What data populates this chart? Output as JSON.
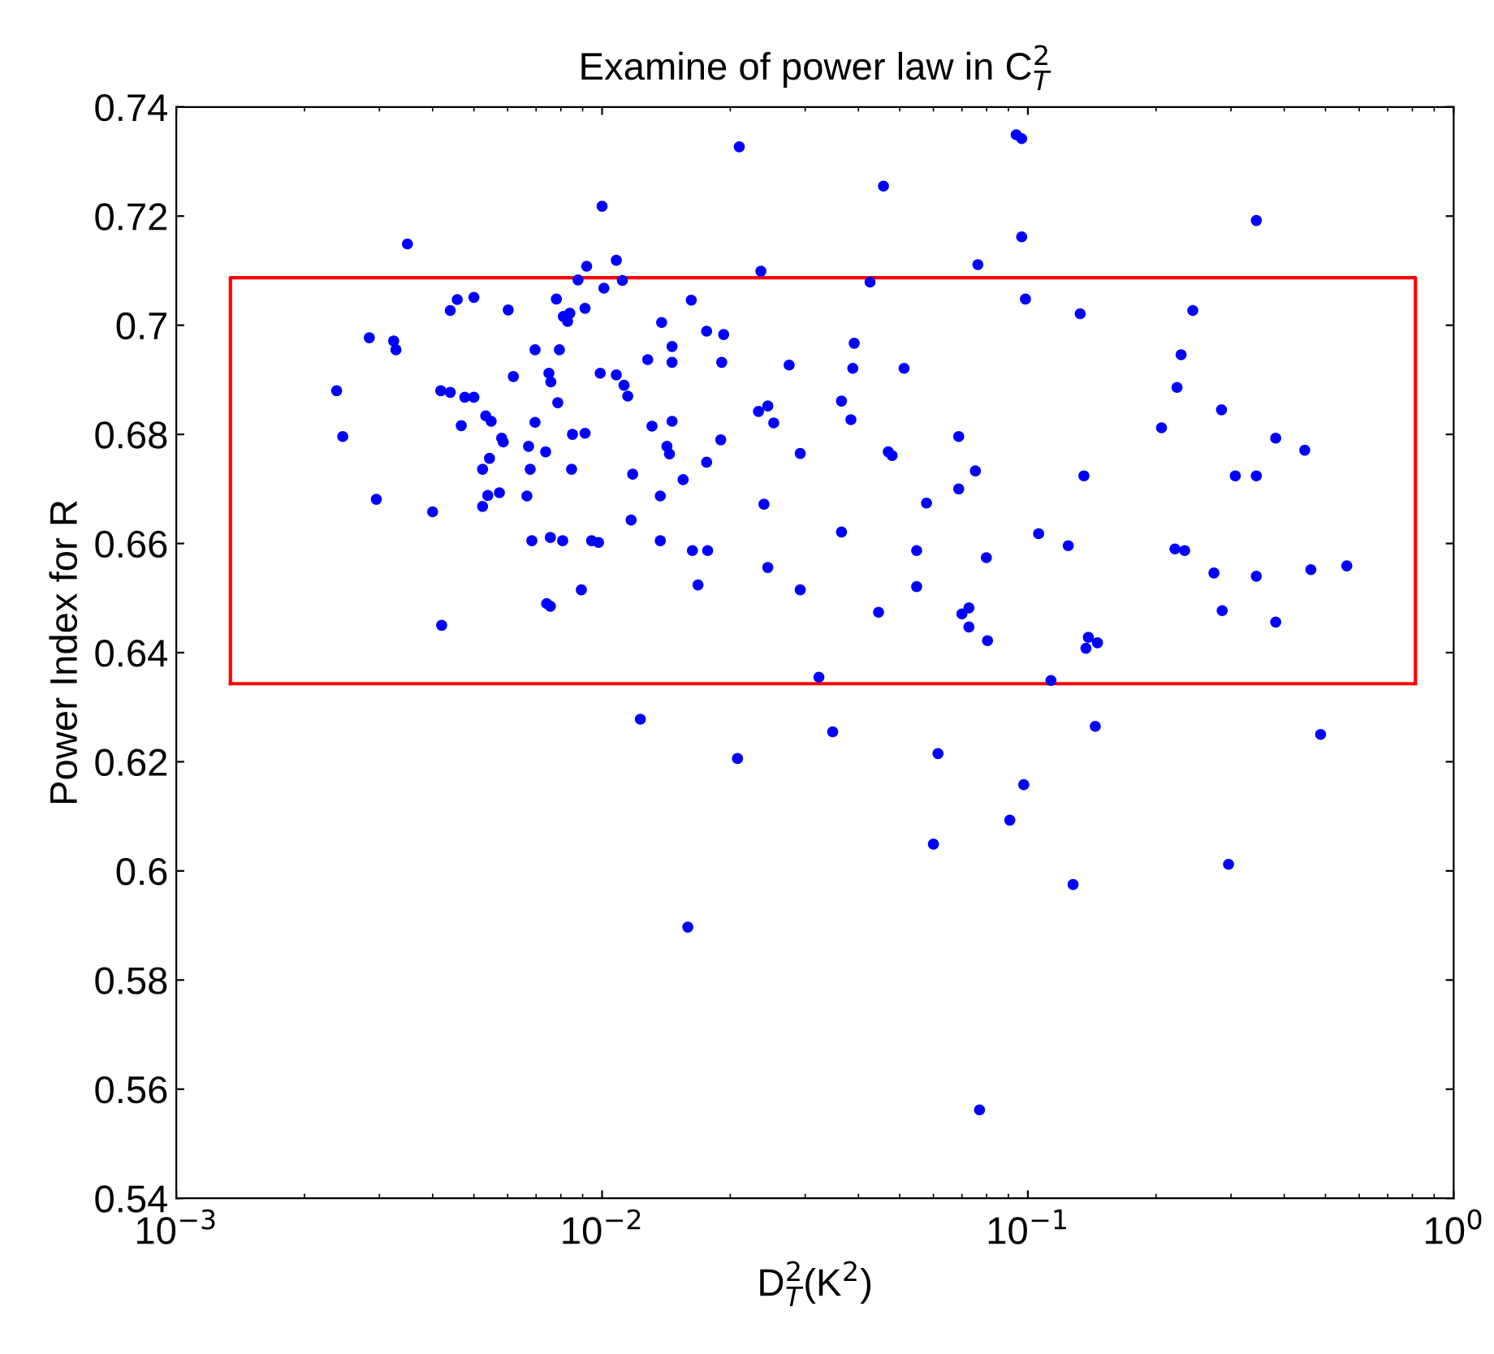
{
  "chart_data": {
    "type": "scatter",
    "title": "Examine of power law in C$^{2}$$_{T}$",
    "xlabel": "D$^{2}$$_{T}$(K$^{2}$)",
    "ylabel": "Power Index for R",
    "log": "x",
    "grid": false,
    "marker": "circle",
    "xlim": [
      0.001,
      1
    ],
    "ylim": [
      0.54,
      0.74
    ],
    "xticks": [
      {
        "value": 0.001,
        "label": "10$^{−3}$"
      },
      {
        "value": 0.01,
        "label": "10$^{−2}$"
      },
      {
        "value": 0.1,
        "label": "10$^{−1}$"
      },
      {
        "value": 1,
        "label": "10$^{0}$"
      }
    ],
    "yticks": [
      0.54,
      0.56,
      0.58,
      0.6,
      0.62,
      0.64,
      0.66,
      0.68,
      0.7,
      0.72,
      0.74
    ],
    "series": [
      {
        "color": "#0000ff",
        "x": [
          0.01,
          0.00349,
          0.0108,
          0.0092,
          0.00878,
          0.0101,
          0.00457,
          0.005,
          0.0044,
          0.00602,
          0.00781,
          0.0084,
          0.00811,
          0.0083,
          0.00912,
          0.00284,
          0.00324,
          0.00328,
          0.00696,
          0.00794,
          0.00238,
          0.00418,
          0.0044,
          0.00619,
          0.0075,
          0.00758,
          0.0099,
          0.0108,
          0.00476,
          0.005,
          0.00787,
          0.00246,
          0.00467,
          0.00533,
          0.00549,
          0.00696,
          0.00581,
          0.00586,
          0.00852,
          0.00912,
          0.00672,
          0.00737,
          0.00544,
          0.00524,
          0.00678,
          0.00848,
          0.00295,
          0.00539,
          0.00574,
          0.00524,
          0.00666,
          0.004,
          0.00684,
          0.00756,
          0.00808,
          0.00945,
          0.00981,
          0.00894,
          0.00741,
          0.00756,
          0.0042,
          0.021,
          0.0939,
          0.0967,
          0.0458,
          0.0967,
          0.0236,
          0.0763,
          0.01116,
          0.0426,
          0.0987,
          0.0162,
          0.0138,
          0.0176,
          0.0193,
          0.0146,
          0.0391,
          0.0128,
          0.0146,
          0.0191,
          0.0275,
          0.0388,
          0.0512,
          0.01126,
          0.01149,
          0.0233,
          0.0245,
          0.0253,
          0.0365,
          0.0384,
          0.0131,
          0.0146,
          0.019,
          0.0142,
          0.0144,
          0.0176,
          0.0292,
          0.047,
          0.048,
          0.0688,
          0.0118,
          0.0155,
          0.0753,
          0.0137,
          0.024,
          0.0688,
          0.0578,
          0.0117,
          0.0365,
          0.0137,
          0.0163,
          0.0177,
          0.0548,
          0.106,
          0.0245,
          0.0799,
          0.0168,
          0.0292,
          0.0548,
          0.0446,
          0.07,
          0.0727,
          0.0727,
          0.0804,
          0.0323,
          0.344,
          0.1327,
          0.244,
          0.229,
          0.224,
          0.285,
          0.206,
          0.382,
          0.447,
          0.1354,
          0.307,
          0.344,
          0.1244,
          0.2215,
          0.2335,
          0.2735,
          0.344,
          0.462,
          0.561,
          0.286,
          0.382,
          0.1387,
          0.1457,
          0.1369,
          0.1133,
          0.0123,
          0.0208,
          0.0159,
          0.0348,
          0.0615,
          0.0978,
          0.0907,
          0.06,
          0.1277,
          0.144,
          0.487,
          0.296,
          0.077
        ],
        "values": [
          0.7218,
          0.7149,
          0.7119,
          0.7108,
          0.7083,
          0.7068,
          0.7047,
          0.7051,
          0.7027,
          0.7028,
          0.7048,
          0.7022,
          0.7016,
          0.7007,
          0.7031,
          0.6977,
          0.6971,
          0.6955,
          0.6955,
          0.6955,
          0.688,
          0.688,
          0.6877,
          0.6906,
          0.6912,
          0.6896,
          0.6912,
          0.6909,
          0.6868,
          0.6868,
          0.6858,
          0.6796,
          0.6816,
          0.6834,
          0.6824,
          0.6822,
          0.6793,
          0.6786,
          0.68,
          0.6802,
          0.6778,
          0.6768,
          0.6756,
          0.6736,
          0.6736,
          0.6736,
          0.6681,
          0.6688,
          0.6693,
          0.6668,
          0.6687,
          0.6658,
          0.6605,
          0.6611,
          0.6605,
          0.6605,
          0.6602,
          0.6515,
          0.649,
          0.6485,
          0.645,
          0.7327,
          0.7349,
          0.7342,
          0.7255,
          0.7162,
          0.7099,
          0.7111,
          0.7082,
          0.7079,
          0.7048,
          0.7046,
          0.7005,
          0.6989,
          0.6983,
          0.6961,
          0.6967,
          0.6937,
          0.6932,
          0.6932,
          0.6927,
          0.6921,
          0.6921,
          0.689,
          0.687,
          0.6842,
          0.6852,
          0.6821,
          0.6861,
          0.6827,
          0.6815,
          0.6824,
          0.679,
          0.6778,
          0.6764,
          0.6749,
          0.6765,
          0.6768,
          0.6761,
          0.6796,
          0.6727,
          0.6717,
          0.6733,
          0.6687,
          0.6672,
          0.67,
          0.6674,
          0.6643,
          0.6621,
          0.6605,
          0.6587,
          0.6587,
          0.6587,
          0.6618,
          0.6556,
          0.6574,
          0.6524,
          0.6515,
          0.6521,
          0.6474,
          0.6471,
          0.6482,
          0.6447,
          0.6422,
          0.6355,
          0.7192,
          0.7021,
          0.7027,
          0.6946,
          0.6886,
          0.6845,
          0.6812,
          0.6793,
          0.6771,
          0.6724,
          0.6724,
          0.6724,
          0.6596,
          0.659,
          0.6587,
          0.6546,
          0.654,
          0.6552,
          0.6559,
          0.6477,
          0.6456,
          0.6428,
          0.6418,
          0.6408,
          0.6349,
          0.6278,
          0.6206,
          0.5897,
          0.6255,
          0.6215,
          0.6158,
          0.6093,
          0.6049,
          0.5975,
          0.6265,
          0.625,
          0.6012,
          0.5562
        ]
      },
      {
        "type": "line",
        "color": "#ff0000",
        "marker": "none",
        "x": [
          0.00134,
          0.00134,
          0.813,
          0.813
        ],
        "values": [
          0.6343,
          0.7087,
          0.7087,
          0.6343
        ]
      },
      {
        "type": "line",
        "color": "#ff0000",
        "marker": "none",
        "x": [
          0.00134,
          0.813
        ],
        "values": [
          0.6343,
          0.6343
        ]
      }
    ]
  }
}
